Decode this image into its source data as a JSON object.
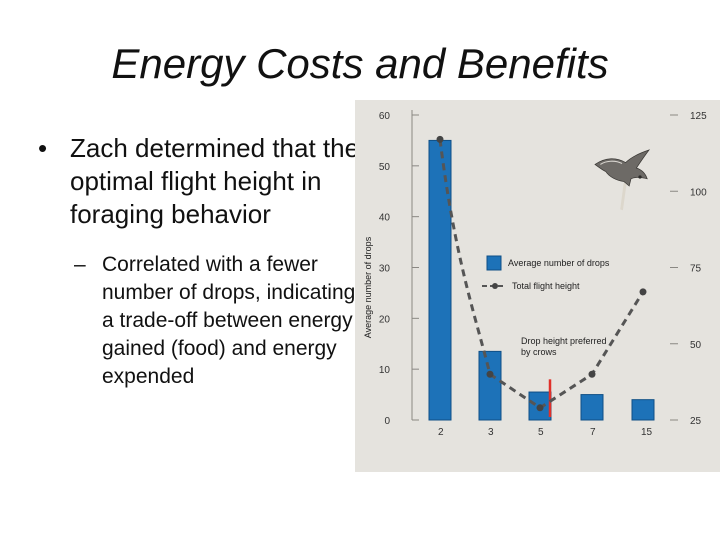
{
  "slide": {
    "title": "Energy Costs and Benefits",
    "bullet_main": "Zach determined that the optimal flight height in foraging behavior",
    "bullet_sub": "Correlated with a fewer number of drops, indicating a trade-off between energy gained (food) and energy expended",
    "bullet_marker": "•",
    "sub_marker": "–"
  },
  "chart_data": {
    "type": "bar",
    "categories": [
      "2",
      "3",
      "5",
      "7",
      "15"
    ],
    "series": [
      {
        "name": "Average number of drops",
        "axis": "left",
        "values": [
          55,
          13.5,
          5.5,
          5,
          4
        ]
      },
      {
        "name": "Total flight height",
        "axis": "right",
        "values": [
          117,
          40,
          29,
          40,
          67
        ]
      }
    ],
    "left_axis": {
      "label": "Average number of drops",
      "ylim": [
        0,
        60
      ],
      "ticks": [
        "0",
        "10",
        "20",
        "30",
        "40",
        "50",
        "60"
      ]
    },
    "right_axis": {
      "label": "",
      "ylim": [
        25,
        125
      ],
      "ticks": [
        "25",
        "50",
        "75",
        "100",
        "125"
      ]
    },
    "annotation": "Drop height preferred by crows",
    "highlight_x": 5,
    "grid": false,
    "legend_placement": "center",
    "colors": {
      "background": "#e5e3de",
      "bar": "#1d72b8",
      "bar_stroke": "#0f4f86",
      "line": "#555555",
      "highlight": "#e0312a"
    }
  }
}
